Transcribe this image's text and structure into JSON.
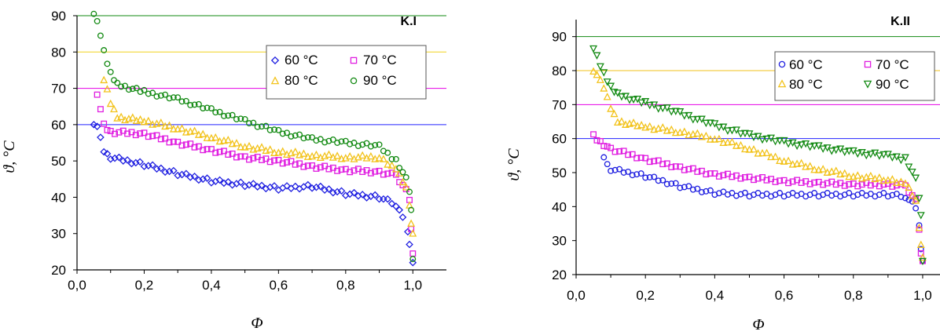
{
  "chart_data": [
    {
      "type": "scatter",
      "title": "K.I",
      "xlabel": "Φ",
      "ylabel": "ϑ, °C",
      "xlim": [
        0.0,
        1.1
      ],
      "ylim": [
        20,
        90
      ],
      "xticks": [
        "0,0",
        "0,2",
        "0,4",
        "0,6",
        "0,8",
        "1,0"
      ],
      "yticks": [
        "20",
        "30",
        "40",
        "50",
        "60",
        "70",
        "80",
        "90"
      ],
      "reference_lines": [
        {
          "y": 90,
          "color": "#138a13"
        },
        {
          "y": 80,
          "color": "#f2d21a"
        },
        {
          "y": 70,
          "color": "#e600e6"
        },
        {
          "y": 60,
          "color": "#2222ff"
        }
      ],
      "legend": "top-right",
      "series": [
        {
          "name": "60 °C",
          "marker": "diamond",
          "color": "#1f1fe0",
          "points": [
            [
              0.05,
              60.5
            ],
            [
              0.06,
              60
            ],
            [
              0.07,
              57
            ],
            [
              0.08,
              53
            ],
            [
              0.1,
              51
            ],
            [
              0.2,
              49
            ],
            [
              0.3,
              46.5
            ],
            [
              0.4,
              44.5
            ],
            [
              0.5,
              43.5
            ],
            [
              0.6,
              42.5
            ],
            [
              0.7,
              43
            ],
            [
              0.8,
              41
            ],
            [
              0.9,
              40
            ],
            [
              0.95,
              38
            ],
            [
              0.97,
              35
            ],
            [
              0.985,
              31
            ],
            [
              0.99,
              27.5
            ],
            [
              1.0,
              22
            ]
          ]
        },
        {
          "name": "70 °C",
          "marker": "square",
          "color": "#e01ee0",
          "points": [
            [
              0.06,
              68
            ],
            [
              0.07,
              64
            ],
            [
              0.08,
              60
            ],
            [
              0.1,
              58
            ],
            [
              0.2,
              57.5
            ],
            [
              0.3,
              55
            ],
            [
              0.4,
              53
            ],
            [
              0.5,
              51
            ],
            [
              0.6,
              50
            ],
            [
              0.7,
              48.5
            ],
            [
              0.8,
              47.5
            ],
            [
              0.9,
              47
            ],
            [
              0.95,
              46
            ],
            [
              0.98,
              42
            ],
            [
              0.99,
              39
            ],
            [
              0.995,
              31
            ],
            [
              1.0,
              24.5
            ]
          ]
        },
        {
          "name": "80 °C",
          "marker": "triangle",
          "color": "#f2c21a",
          "points": [
            [
              0.08,
              72.5
            ],
            [
              0.09,
              70
            ],
            [
              0.1,
              66
            ],
            [
              0.12,
              62
            ],
            [
              0.2,
              61
            ],
            [
              0.3,
              59
            ],
            [
              0.4,
              56.5
            ],
            [
              0.5,
              54
            ],
            [
              0.6,
              52.5
            ],
            [
              0.7,
              51.5
            ],
            [
              0.8,
              51
            ],
            [
              0.9,
              51
            ],
            [
              0.95,
              48
            ],
            [
              0.98,
              43
            ],
            [
              0.99,
              38
            ],
            [
              0.995,
              33
            ],
            [
              1.0,
              30
            ]
          ]
        },
        {
          "name": "90 °C",
          "marker": "circle",
          "color": "#138a13",
          "points": [
            [
              0.05,
              90
            ],
            [
              0.06,
              88
            ],
            [
              0.07,
              84
            ],
            [
              0.08,
              80
            ],
            [
              0.1,
              74
            ],
            [
              0.12,
              71
            ],
            [
              0.2,
              69
            ],
            [
              0.3,
              67
            ],
            [
              0.4,
              64
            ],
            [
              0.5,
              61
            ],
            [
              0.6,
              58
            ],
            [
              0.7,
              56
            ],
            [
              0.8,
              55
            ],
            [
              0.9,
              54
            ],
            [
              0.95,
              50
            ],
            [
              0.98,
              45
            ],
            [
              0.99,
              41
            ],
            [
              0.995,
              36
            ],
            [
              1.0,
              23
            ]
          ]
        }
      ]
    },
    {
      "type": "scatter",
      "title": "K.II",
      "xlabel": "Φ",
      "ylabel": "ϑ, °C",
      "xlim": [
        0.0,
        1.05
      ],
      "ylim": [
        20,
        95
      ],
      "xticks": [
        "0,0",
        "0,2",
        "0,4",
        "0,6",
        "0,8",
        "1,0"
      ],
      "yticks": [
        "20",
        "30",
        "40",
        "50",
        "60",
        "70",
        "80",
        "90"
      ],
      "reference_lines": [
        {
          "y": 90,
          "color": "#138a13"
        },
        {
          "y": 80,
          "color": "#f2c21a"
        },
        {
          "y": 70,
          "color": "#e600e6"
        },
        {
          "y": 60,
          "color": "#2222ff"
        }
      ],
      "legend": "top-right",
      "series": [
        {
          "name": "60 °C",
          "marker": "circle",
          "color": "#1f1fe0",
          "points": [
            [
              0.08,
              55
            ],
            [
              0.09,
              53
            ],
            [
              0.1,
              51
            ],
            [
              0.2,
              49
            ],
            [
              0.3,
              46
            ],
            [
              0.4,
              44
            ],
            [
              0.5,
              43.5
            ],
            [
              0.6,
              43.5
            ],
            [
              0.7,
              43.5
            ],
            [
              0.8,
              43.5
            ],
            [
              0.9,
              43.5
            ],
            [
              0.95,
              43
            ],
            [
              0.98,
              40
            ],
            [
              0.99,
              35
            ],
            [
              0.995,
              28
            ],
            [
              1.0,
              24
            ]
          ]
        },
        {
          "name": "70 °C",
          "marker": "square",
          "color": "#e01ee0",
          "points": [
            [
              0.05,
              61
            ],
            [
              0.07,
              59
            ],
            [
              0.1,
              57
            ],
            [
              0.2,
              54
            ],
            [
              0.3,
              51.5
            ],
            [
              0.4,
              49.5
            ],
            [
              0.5,
              48.5
            ],
            [
              0.6,
              47.5
            ],
            [
              0.7,
              47
            ],
            [
              0.8,
              46.5
            ],
            [
              0.9,
              46.5
            ],
            [
              0.95,
              46
            ],
            [
              0.98,
              42
            ],
            [
              0.99,
              33
            ],
            [
              0.995,
              26
            ],
            [
              1.0,
              24
            ]
          ]
        },
        {
          "name": "80 °C",
          "marker": "triangle",
          "color": "#f2c21a",
          "points": [
            [
              0.05,
              80
            ],
            [
              0.06,
              79
            ],
            [
              0.08,
              75
            ],
            [
              0.1,
              69
            ],
            [
              0.12,
              65
            ],
            [
              0.2,
              63.5
            ],
            [
              0.3,
              62
            ],
            [
              0.4,
              60
            ],
            [
              0.5,
              57
            ],
            [
              0.6,
              53.5
            ],
            [
              0.7,
              51
            ],
            [
              0.8,
              49
            ],
            [
              0.9,
              48
            ],
            [
              0.95,
              47
            ],
            [
              0.98,
              42
            ],
            [
              0.99,
              34
            ],
            [
              0.995,
              29
            ],
            [
              1.0,
              25
            ]
          ]
        },
        {
          "name": "90 °C",
          "marker": "triangle-down",
          "color": "#138a13",
          "points": [
            [
              0.05,
              86
            ],
            [
              0.06,
              84
            ],
            [
              0.08,
              79
            ],
            [
              0.1,
              75
            ],
            [
              0.12,
              73
            ],
            [
              0.2,
              70.5
            ],
            [
              0.3,
              67.5
            ],
            [
              0.4,
              64
            ],
            [
              0.5,
              61
            ],
            [
              0.6,
              59
            ],
            [
              0.7,
              57.5
            ],
            [
              0.8,
              56
            ],
            [
              0.9,
              55
            ],
            [
              0.95,
              54
            ],
            [
              0.98,
              48
            ],
            [
              0.99,
              42
            ],
            [
              0.995,
              37
            ],
            [
              1.0,
              24
            ]
          ]
        }
      ]
    }
  ]
}
